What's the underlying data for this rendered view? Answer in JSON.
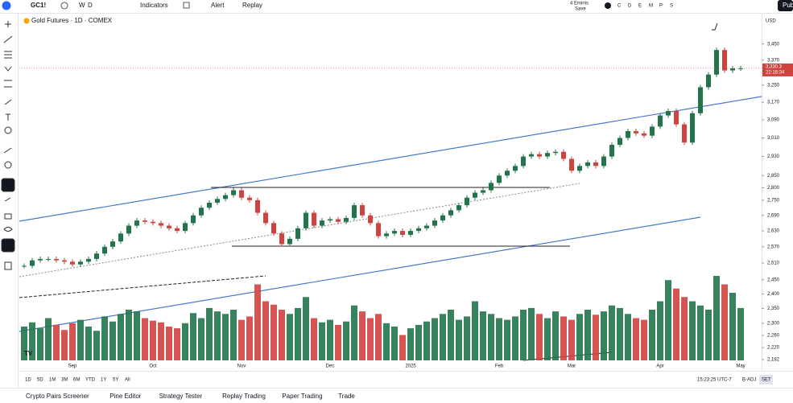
{
  "toolbar": {
    "symbol": "GC1!",
    "intervals": [
      "W",
      "D"
    ],
    "indicators": "Indicators",
    "alert": "Alert",
    "replay": "Replay",
    "layout_name": "4 Eminis",
    "layout_state": "Save",
    "letters": [
      "C",
      "D",
      "E",
      "M",
      "P",
      "S"
    ],
    "publish": "Pub"
  },
  "chart_data": {
    "type": "candlestick",
    "title": "Gold Futures · 1D · COMEX",
    "currency": "USD",
    "log": true,
    "up_color": "#22754b",
    "down_color": "#d0423f",
    "categories": [
      null,
      null,
      null,
      null,
      null,
      null,
      "Sep",
      null,
      null,
      null,
      null,
      null,
      null,
      null,
      null,
      null,
      "Oct",
      null,
      null,
      null,
      null,
      null,
      null,
      null,
      null,
      null,
      null,
      "Nov",
      null,
      null,
      null,
      null,
      null,
      null,
      null,
      null,
      null,
      null,
      "Dec",
      null,
      null,
      null,
      null,
      null,
      null,
      null,
      null,
      null,
      "2025",
      null,
      null,
      null,
      null,
      null,
      null,
      null,
      null,
      null,
      null,
      "Feb",
      null,
      null,
      null,
      null,
      null,
      null,
      null,
      null,
      "Mar",
      null,
      null,
      null,
      null,
      null,
      null,
      null,
      null,
      null,
      null,
      "Apr",
      null,
      null,
      null,
      null,
      null,
      null,
      null,
      null,
      null,
      "May"
    ],
    "closes": [
      2500,
      2520,
      2525,
      2525,
      2520,
      2515,
      2505,
      2515,
      2525,
      2545,
      2570,
      2590,
      2620,
      2650,
      2670,
      2665,
      2660,
      2650,
      2640,
      2630,
      2660,
      2690,
      2720,
      2740,
      2755,
      2770,
      2790,
      2760,
      2750,
      2700,
      2660,
      2620,
      2580,
      2600,
      2640,
      2700,
      2650,
      2670,
      2675,
      2665,
      2680,
      2730,
      2690,
      2660,
      2610,
      2620,
      2630,
      2615,
      2630,
      2640,
      2650,
      2670,
      2690,
      2710,
      2730,
      2760,
      2780,
      2790,
      2820,
      2850,
      2870,
      2890,
      2930,
      2940,
      2930,
      2945,
      2950,
      2920,
      2870,
      2890,
      2905,
      2890,
      2930,
      2980,
      3010,
      3040,
      3030,
      3020,
      3060,
      3110,
      3130,
      3070,
      2990,
      3120,
      3240,
      3300,
      3420,
      3320,
      3330,
      3330.3
    ],
    "volumes": [
      40,
      45,
      38,
      50,
      42,
      36,
      44,
      48,
      40,
      35,
      52,
      46,
      55,
      60,
      58,
      50,
      47,
      45,
      40,
      38,
      44,
      56,
      50,
      62,
      58,
      55,
      60,
      48,
      52,
      90,
      70,
      66,
      60,
      55,
      62,
      75,
      50,
      45,
      48,
      42,
      46,
      65,
      58,
      50,
      55,
      44,
      40,
      30,
      38,
      42,
      46,
      50,
      55,
      60,
      48,
      52,
      70,
      58,
      55,
      50,
      48,
      52,
      60,
      62,
      55,
      50,
      58,
      52,
      48,
      55,
      60,
      54,
      58,
      65,
      62,
      55,
      50,
      48,
      60,
      70,
      95,
      85,
      75,
      70,
      65,
      60,
      100,
      90,
      80,
      62
    ],
    "ylim": [
      2149,
      3601
    ],
    "yticks": [
      {
        "value": 3450,
        "label": "3,450"
      },
      {
        "value": 3370,
        "label": "3,370"
      },
      {
        "value": 3250,
        "label": "3,250"
      },
      {
        "value": 3170,
        "label": "3,170"
      },
      {
        "value": 3090,
        "label": "3,090"
      },
      {
        "value": 3010,
        "label": "3,010"
      },
      {
        "value": 2930,
        "label": "2,930"
      },
      {
        "value": 2850,
        "label": "2,850"
      },
      {
        "value": 2800,
        "label": "2,800"
      },
      {
        "value": 2750,
        "label": "2,750"
      },
      {
        "value": 2690,
        "label": "2,690"
      },
      {
        "value": 2630,
        "label": "2,630"
      },
      {
        "value": 2570,
        "label": "2,570"
      },
      {
        "value": 2510,
        "label": "2,510"
      },
      {
        "value": 2450,
        "label": "2,450"
      },
      {
        "value": 2400,
        "label": "2,400"
      },
      {
        "value": 2350,
        "label": "2,350"
      },
      {
        "value": 2300,
        "label": "2,300"
      },
      {
        "value": 2260,
        "label": "2,260"
      },
      {
        "value": 2220,
        "label": "2,220"
      },
      {
        "value": 2182,
        "label": "2,182"
      }
    ],
    "last_price": {
      "value": 3330.3,
      "label": "3,330.3"
    },
    "countdown": "22:16:34"
  },
  "bottom_bar": {
    "ranges": [
      "1D",
      "5D",
      "1M",
      "3M",
      "6M",
      "YTD",
      "1Y",
      "5Y",
      "All"
    ],
    "clock": "15:23:25 UTC-7",
    "adjust": "B-ADJ",
    "session": "SET"
  },
  "footer": {
    "tabs": [
      "Crypto Pairs Screener",
      "Pine Editor",
      "Strategy Tester",
      "Replay Trading",
      "Paper Trading",
      "Trade"
    ]
  }
}
